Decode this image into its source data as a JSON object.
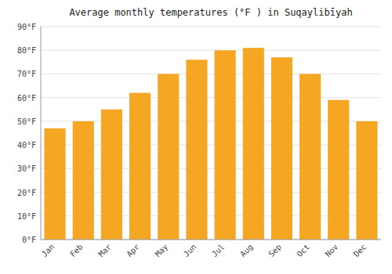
{
  "chart_data": {
    "type": "bar",
    "title": "Average monthly temperatures (°F ) in Suqaylibīyah",
    "categories": [
      "Jan",
      "Feb",
      "Mar",
      "Apr",
      "May",
      "Jun",
      "Jul",
      "Aug",
      "Sep",
      "Oct",
      "Nov",
      "Dec"
    ],
    "values": [
      47,
      50,
      55,
      62,
      70,
      76,
      80,
      81,
      77,
      70,
      59,
      50
    ],
    "color": "#F5A623",
    "ylim": [
      0,
      90
    ],
    "yticks": [
      {
        "value": 0,
        "label": "0°F"
      },
      {
        "value": 10,
        "label": "10°F"
      },
      {
        "value": 20,
        "label": "20°F"
      },
      {
        "value": 30,
        "label": "30°F"
      },
      {
        "value": 40,
        "label": "40°F"
      },
      {
        "value": 50,
        "label": "50°F"
      },
      {
        "value": 60,
        "label": "60°F"
      },
      {
        "value": 70,
        "label": "70°F"
      },
      {
        "value": 80,
        "label": "80°F"
      },
      {
        "value": 90,
        "label": "90°F"
      }
    ],
    "grid": true
  }
}
